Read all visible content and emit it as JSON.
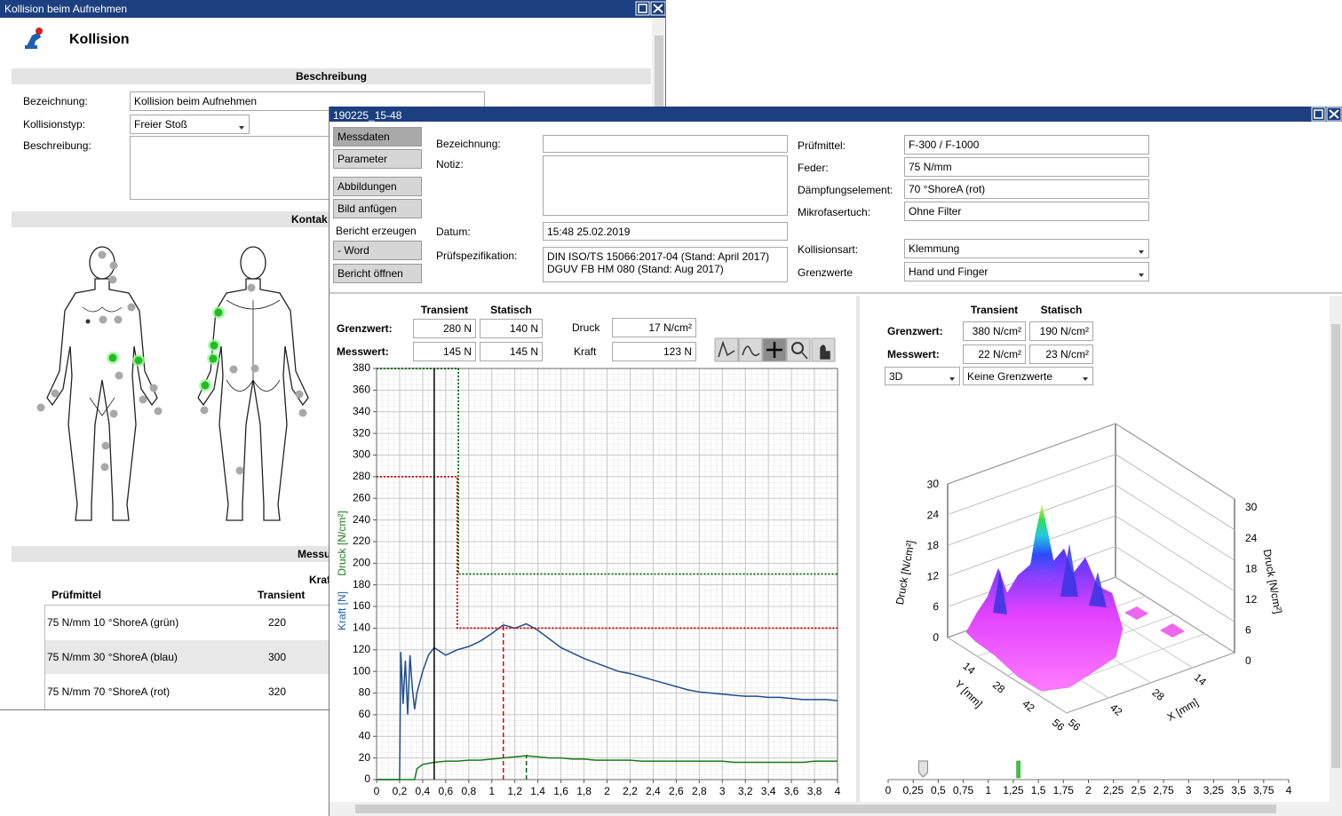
{
  "back_window": {
    "title": "Kollision beim Aufnehmen",
    "heading": "Kollision",
    "sections": [
      "Beschreibung",
      "Kontak",
      "Messu"
    ],
    "fields": {
      "bezeichnung_label": "Bezeichnung:",
      "bezeichnung": "Kollision beim Aufnehmen",
      "typ_label": "Kollisionstyp:",
      "typ": "Freier Stoß",
      "beschreibung_label": "Beschreibung:"
    },
    "measure_heading": "Kraf",
    "table": {
      "headers": [
        "Prüfmittel",
        "Transient"
      ],
      "rows": [
        [
          "75 N/mm 10 °ShoreA (grün)",
          220
        ],
        [
          "75 N/mm 30 °ShoreA (blau)",
          300
        ],
        [
          "75 N/mm 70 °ShoreA (rot)",
          320
        ]
      ]
    }
  },
  "front_window": {
    "title": "190225_15-48",
    "nav": [
      "Messdaten",
      "Parameter",
      "Abbildungen",
      "Bild anfügen",
      "Bericht erzeugen",
      "- Word",
      "Bericht öffnen"
    ],
    "form_left": [
      {
        "label": "Bezeichnung:"
      },
      {
        "label": "Notiz:"
      },
      {
        "label": "Datum:",
        "value": "15:48 25.02.2019"
      },
      {
        "label": "Prüfspezifikation:",
        "value": [
          "DIN ISO/TS 15066:2017-04 (Stand: April 2017)",
          "DGUV FB HM 080 (Stand: Aug 2017)"
        ]
      }
    ],
    "form_right": [
      {
        "label": "Prüfmittel:",
        "value": "F-300 / F-1000"
      },
      {
        "label": "Feder:",
        "value": "75 N/mm"
      },
      {
        "label": "Dämpfungselement:",
        "value": "70 °ShoreA (rot)"
      },
      {
        "label": "Mikrofasertuch:",
        "value": "Ohne Filter"
      },
      {
        "label": "Kollisionsart:",
        "value": "Klemmung"
      },
      {
        "label": "Grenzwerte",
        "value": "Hand und Finger"
      }
    ],
    "left_summary": {
      "headers": [
        "Transient",
        "Statisch"
      ],
      "rows": [
        {
          "label": "Grenzwert:",
          "values": [
            "280 N",
            "140 N"
          ]
        },
        {
          "label": "Messwert:",
          "values": [
            "145 N",
            "145 N"
          ]
        }
      ],
      "druck_label": "Druck",
      "druck": "17 N/cm²",
      "kraft_label": "Kraft",
      "kraft": "123 N"
    },
    "right_summary": {
      "headers": [
        "Transient",
        "Statisch"
      ],
      "rows": [
        {
          "label": "Grenzwert:",
          "values": [
            "380 N/cm²",
            "190 N/cm²"
          ]
        },
        {
          "label": "Messwert:",
          "values": [
            "22 N/cm²",
            "23 N/cm²"
          ]
        }
      ],
      "dropdowns": [
        "3D",
        "Keine Grenzwerte"
      ]
    }
  },
  "chart_data": [
    {
      "type": "line",
      "y_labels": [
        {
          "text": "Kraft [N]",
          "color": "#1f5fa8"
        },
        {
          "text": "Druck [N/cm²]",
          "color": "#1a7a1a"
        }
      ],
      "xlim": [
        0,
        4
      ],
      "ylim": [
        0,
        380
      ],
      "grid": true,
      "xticks": [
        0,
        {
          "value": 0.2,
          "label": "0,2"
        },
        {
          "value": 0.4,
          "label": "0,4"
        },
        {
          "value": 0.6,
          "label": "0,6"
        },
        {
          "value": 0.8,
          "label": "0,8"
        },
        1,
        {
          "value": 1.2,
          "label": "1,2"
        },
        {
          "value": 1.4,
          "label": "1,4"
        },
        {
          "value": 1.6,
          "label": "1,6"
        },
        {
          "value": 1.8,
          "label": "1,8"
        },
        2,
        {
          "value": 2.2,
          "label": "2,2"
        },
        {
          "value": 2.4,
          "label": "2,4"
        },
        {
          "value": 2.6,
          "label": "2,6"
        },
        {
          "value": 2.8,
          "label": "2,8"
        },
        3,
        {
          "value": 3.2,
          "label": "3,2"
        },
        {
          "value": 3.4,
          "label": "3,4"
        },
        {
          "value": 3.6,
          "label": "3,6"
        },
        {
          "value": 3.8,
          "label": "3,8"
        },
        4
      ],
      "yticks": [
        0,
        20,
        40,
        60,
        80,
        100,
        120,
        140,
        160,
        180,
        200,
        220,
        240,
        260,
        280,
        300,
        320,
        340,
        360,
        380
      ],
      "x": [
        0,
        0.1,
        0.2,
        0.21,
        0.23,
        0.25,
        0.27,
        0.29,
        0.31,
        0.33,
        0.35,
        0.4,
        0.45,
        0.5,
        0.6,
        0.7,
        0.8,
        0.9,
        1.0,
        1.1,
        1.2,
        1.3,
        1.4,
        1.5,
        1.6,
        1.7,
        1.8,
        1.9,
        2.0,
        2.1,
        2.2,
        2.3,
        2.4,
        2.5,
        2.6,
        2.7,
        2.8,
        2.9,
        3.0,
        3.1,
        3.2,
        3.3,
        3.4,
        3.5,
        3.6,
        3.7,
        3.8,
        3.9,
        4.0
      ],
      "series": [
        {
          "color": "#1f4e8c",
          "values": [
            0,
            0,
            0,
            118,
            70,
            110,
            60,
            115,
            85,
            65,
            80,
            100,
            115,
            122,
            115,
            120,
            123,
            128,
            135,
            143,
            140,
            144,
            138,
            130,
            122,
            117,
            112,
            108,
            104,
            100,
            98,
            95,
            92,
            89,
            86,
            83,
            81,
            80,
            79,
            78,
            77,
            77,
            76,
            76,
            75,
            74,
            74,
            74,
            73
          ]
        },
        {
          "color": "#1a7a1a",
          "values": [
            0,
            0,
            0,
            0,
            0,
            0,
            0,
            0,
            0,
            0,
            10,
            14,
            15,
            16,
            17,
            17,
            18,
            18,
            19,
            20,
            21,
            22,
            21,
            20,
            20,
            19,
            19,
            18,
            18,
            18,
            18,
            17,
            17,
            17,
            17,
            17,
            17,
            17,
            17,
            16,
            16,
            16,
            16,
            16,
            16,
            16,
            17,
            17,
            17
          ]
        },
        {
          "color": "#cc0000",
          "style": "dotted",
          "x": [
            0,
            0.7,
            0.7,
            4
          ],
          "values": [
            280,
            280,
            140,
            140
          ]
        },
        {
          "color": "#006600",
          "style": "dotted",
          "x": [
            0,
            0.71,
            0.71,
            4
          ],
          "values": [
            380,
            380,
            190,
            190
          ]
        }
      ],
      "vlines": [
        {
          "x": 0.5,
          "color": "#000000"
        },
        {
          "x": 1.1,
          "y": 145,
          "color": "#dd0000",
          "style": "dashed"
        },
        {
          "x": 1.3,
          "y": 23,
          "color": "#006600",
          "style": "dashed"
        }
      ]
    },
    {
      "type": "surface3d",
      "z_label": "Druck [N/cm²]",
      "x_label": "X [mm]",
      "y_label": "Y [mm]",
      "zlim": [
        0,
        30
      ],
      "zticks": [
        0,
        6,
        12,
        18,
        24,
        30
      ],
      "xlim": [
        0,
        56
      ],
      "xticks": [
        14,
        28,
        42,
        56
      ],
      "ylim": [
        0,
        56
      ],
      "yticks": [
        14,
        28,
        42,
        56
      ]
    },
    {
      "type": "slider",
      "xlim": [
        0,
        4
      ],
      "xticks": [
        0,
        {
          "value": 0.25,
          "label": "0,25"
        },
        {
          "value": 0.5,
          "label": "0,5"
        },
        {
          "value": 0.75,
          "label": "0,75"
        },
        1,
        {
          "value": 1.25,
          "label": "1,25"
        },
        {
          "value": 1.5,
          "label": "1,5"
        },
        {
          "value": 1.75,
          "label": "1,75"
        },
        2,
        {
          "value": 2.25,
          "label": "2,25"
        },
        {
          "value": 2.5,
          "label": "2,5"
        },
        {
          "value": 2.75,
          "label": "2,75"
        },
        3,
        {
          "value": 3.25,
          "label": "3,25"
        },
        {
          "value": 3.5,
          "label": "3,5"
        },
        {
          "value": 3.75,
          "label": "3,75"
        },
        4
      ],
      "thumb": 0.35,
      "marker": 1.3,
      "marker_color": "#33cc33"
    }
  ]
}
